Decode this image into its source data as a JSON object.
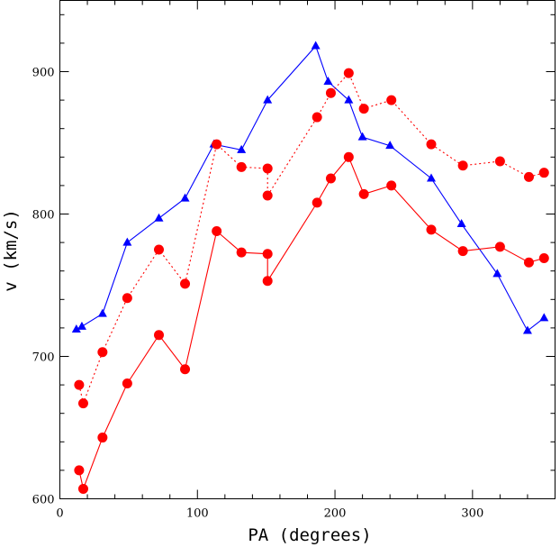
{
  "chart_data": {
    "type": "line",
    "title": "",
    "xlabel": "PA (degrees)",
    "ylabel": "v (km/s)",
    "xlim": [
      0,
      360
    ],
    "ylim": [
      600,
      950
    ],
    "xticks": [
      0,
      100,
      200,
      300
    ],
    "yticks": [
      600,
      700,
      800,
      900
    ],
    "grid": false,
    "series": [
      {
        "color": "#0000ff",
        "marker": "triangle",
        "line_style": "solid",
        "x": [
          12,
          16,
          31,
          49,
          72,
          91,
          112,
          132,
          151,
          186,
          195,
          210,
          220,
          240,
          270,
          292,
          318,
          340,
          352
        ],
        "y": [
          719,
          721,
          730,
          780,
          797,
          811,
          849,
          845,
          880,
          918,
          893,
          880,
          854,
          848,
          825,
          793,
          758,
          718,
          727
        ]
      },
      {
        "color": "#ff0000",
        "marker": "circle",
        "line_style": "dotted",
        "x": [
          14,
          17,
          31,
          49,
          72,
          91,
          114,
          132,
          151,
          151,
          187,
          197,
          210,
          221,
          241,
          270,
          293,
          320,
          341,
          352
        ],
        "y": [
          680,
          667,
          703,
          741,
          775,
          751,
          849,
          833,
          832,
          813,
          868,
          885,
          899,
          874,
          880,
          849,
          834,
          837,
          826,
          829
        ]
      },
      {
        "color": "#ff0000",
        "marker": "circle",
        "line_style": "solid",
        "x": [
          14,
          17,
          31,
          49,
          72,
          91,
          114,
          132,
          151,
          151,
          187,
          197,
          210,
          221,
          241,
          270,
          293,
          320,
          341,
          352
        ],
        "y": [
          620,
          607,
          643,
          681,
          715,
          691,
          788,
          773,
          772,
          753,
          808,
          825,
          840,
          814,
          820,
          789,
          774,
          777,
          766,
          769
        ]
      }
    ]
  }
}
